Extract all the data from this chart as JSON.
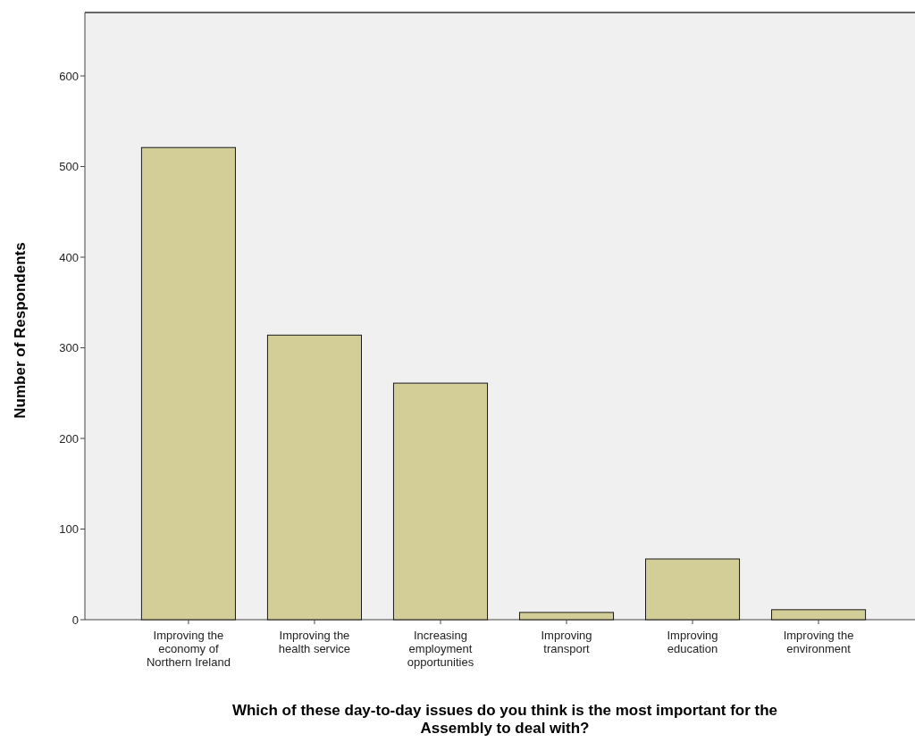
{
  "chart_data": {
    "type": "bar",
    "xlabel": "Which of these day-to-day issues do you think is the most important for the Assembly to deal with?",
    "ylabel": "Number of Respondents",
    "categories": [
      "Improving the economy of Northern Ireland",
      "Improving the health service",
      "Increasing employment opportunities",
      "Improving transport",
      "Improving education",
      "Improving the environment"
    ],
    "values": [
      521,
      314,
      261,
      8,
      67,
      11
    ],
    "color": "#d3ce97",
    "ylim": [
      0,
      670
    ],
    "yticks": [
      0,
      100,
      200,
      300,
      400,
      500,
      600
    ],
    "grid": false
  }
}
